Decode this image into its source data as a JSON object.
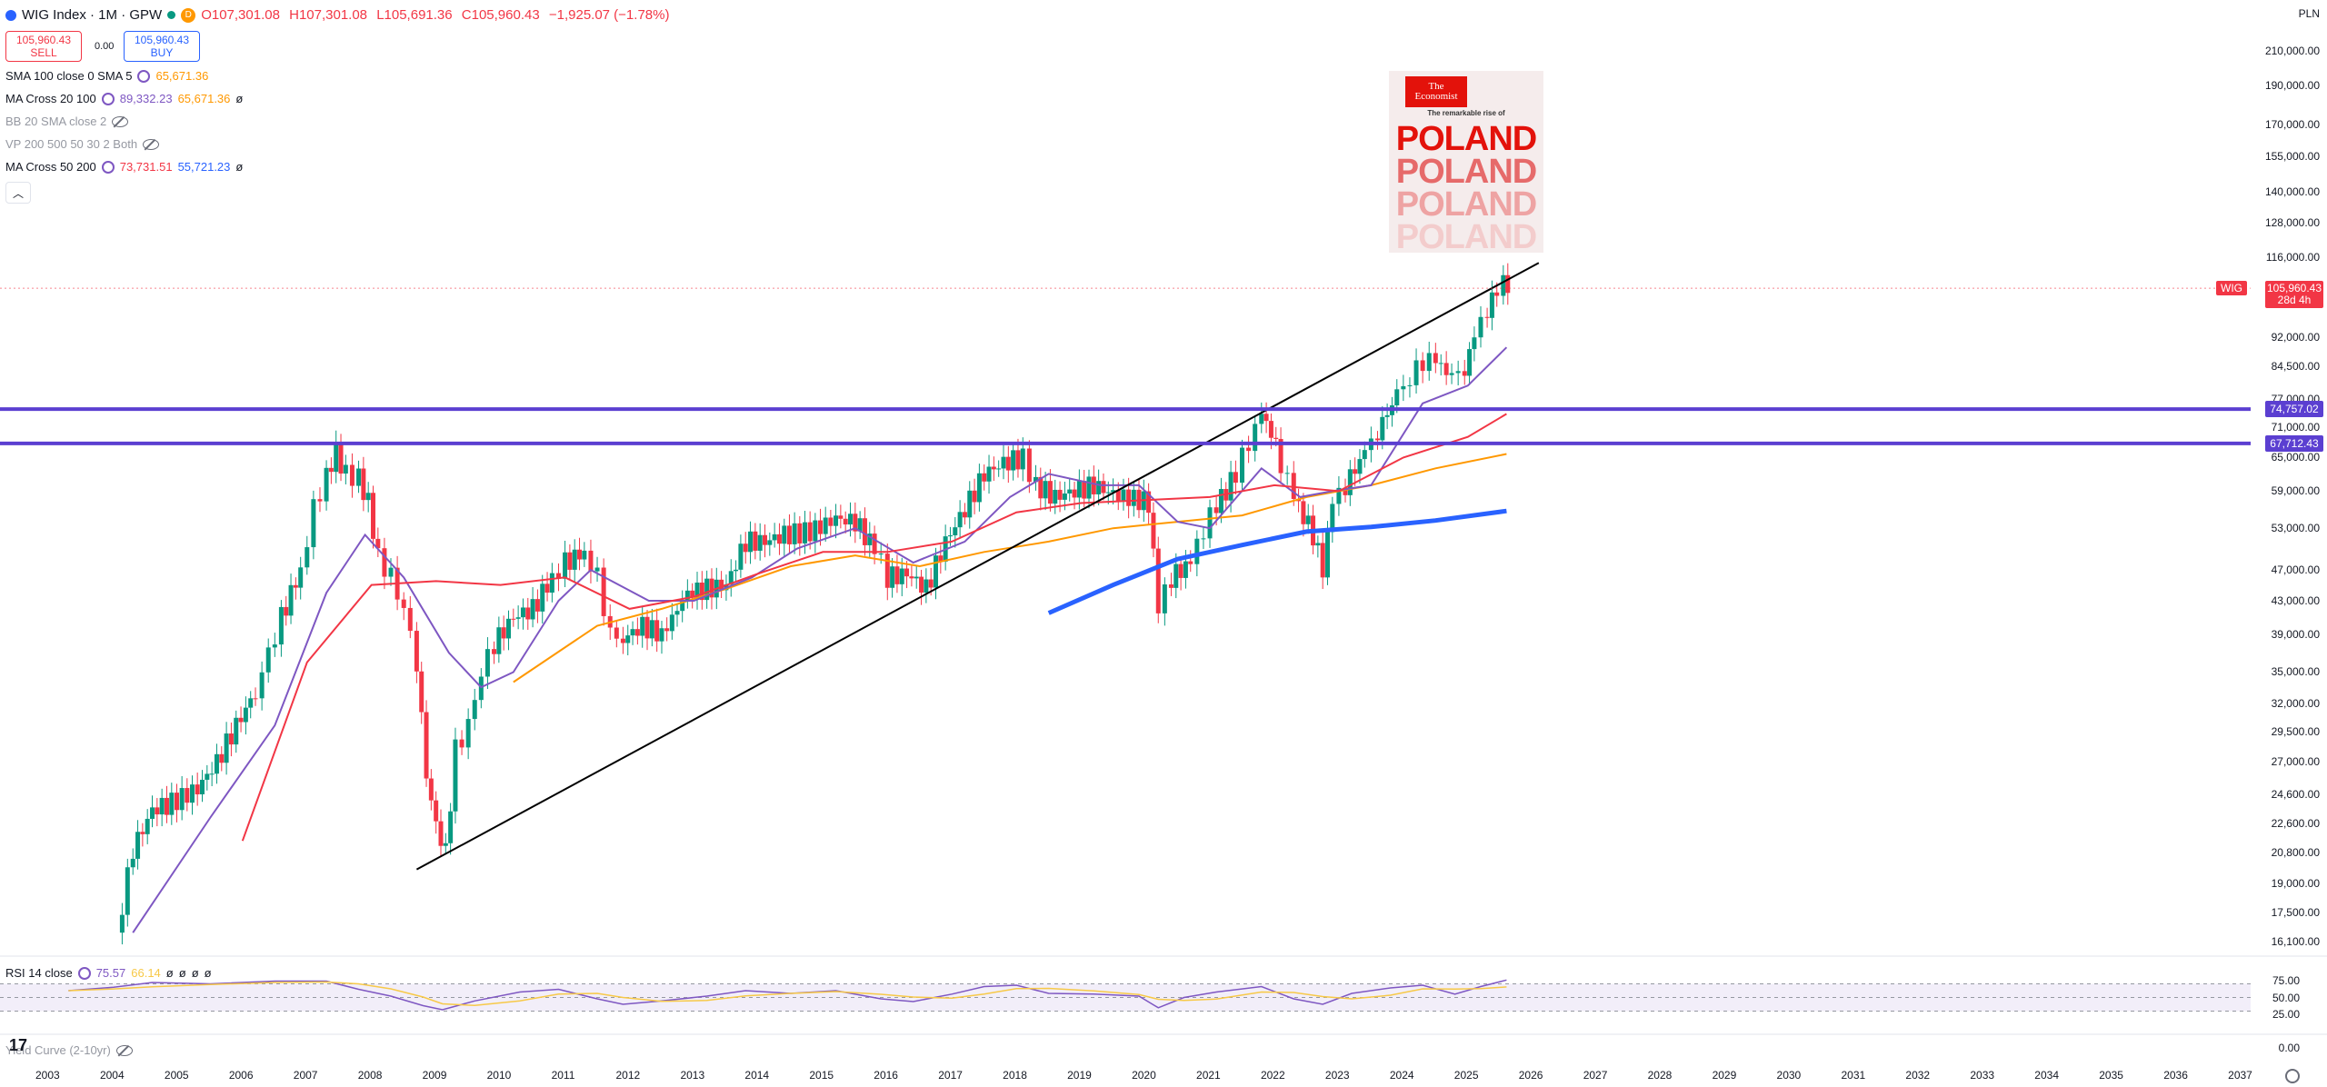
{
  "header": {
    "symbol": "WIG Index · 1M · GPW",
    "market_badge": "D",
    "ohlc": {
      "open": "O107,301.08",
      "high": "H107,301.08",
      "low": "L105,691.36",
      "close": "C105,960.43",
      "change": "−1,925.07 (−1.78%)"
    }
  },
  "trade": {
    "sell_price": "105,960.43",
    "sell_label": "SELL",
    "spread": "0.00",
    "buy_price": "105,960.43",
    "buy_label": "BUY"
  },
  "indicators": [
    {
      "name": "SMA 100 close 0 SMA 5",
      "values": [
        "65,671.36"
      ],
      "colors": [
        "#ff9800"
      ]
    },
    {
      "name": "MA Cross 20 100",
      "values": [
        "89,332.23",
        "65,671.36",
        "ø"
      ],
      "colors": [
        "#7e57c2",
        "#ff9800",
        "#131722"
      ]
    },
    {
      "name": "BB 20 SMA close 2",
      "values": [],
      "hidden": true
    },
    {
      "name": "VP 200 500 50 30 2 Both",
      "values": [],
      "hidden": true
    },
    {
      "name": "MA Cross 50 200",
      "values": [
        "73,731.51",
        "55,721.23",
        "ø"
      ],
      "colors": [
        "#f23645",
        "#2962ff",
        "#131722"
      ]
    }
  ],
  "rsi": {
    "name": "RSI 14 close",
    "values": [
      "75.57",
      "66.14",
      "ø",
      "ø",
      "ø",
      "ø"
    ],
    "axis": [
      "75.00",
      "50.00",
      "25.00",
      "0.00"
    ]
  },
  "yield_curve": {
    "name": "Yield Curve (2-10yr)"
  },
  "currency": "PLN",
  "price_axis": [
    "210,000.00",
    "190,000.00",
    "170,000.00",
    "155,000.00",
    "140,000.00",
    "128,000.00",
    "116,000.00",
    "92,000.00",
    "84,500.00",
    "77,000.00",
    "71,000.00",
    "65,000.00",
    "59,000.00",
    "53,000.00",
    "47,000.00",
    "43,000.00",
    "39,000.00",
    "35,000.00",
    "32,000.00",
    "29,500.00",
    "27,000.00",
    "24,600.00",
    "22,600.00",
    "20,800.00",
    "19,000.00",
    "17,500.00",
    "16,100.00"
  ],
  "time_axis": [
    "2003",
    "2004",
    "2005",
    "2006",
    "2007",
    "2008",
    "2009",
    "2010",
    "2011",
    "2012",
    "2013",
    "2014",
    "2015",
    "2016",
    "2017",
    "2018",
    "2019",
    "2020",
    "2021",
    "2022",
    "2023",
    "2024",
    "2025",
    "2026",
    "2027",
    "2028",
    "2029",
    "2030",
    "2031",
    "2032",
    "2033",
    "2034",
    "2035",
    "2036",
    "2037"
  ],
  "price_tags": [
    {
      "label": "WIG",
      "value": "105,960.43",
      "sub": "28d 4h",
      "color": "#f23645"
    },
    {
      "value": "74,757.02",
      "color": "#5b3fd1"
    },
    {
      "value": "67,712.43",
      "color": "#5b3fd1"
    }
  ],
  "cover": {
    "logo_top": "The",
    "logo_bottom": "Economist",
    "headline": "The remarkable rise of",
    "word": "POLAND"
  },
  "chart_data": {
    "type": "candlestick",
    "title": "WIG Index · 1M · GPW",
    "interval": "1M",
    "y_scale": "log",
    "ylim": [
      15500,
      225000
    ],
    "xlim": [
      2003.0,
      2037.9
    ],
    "last_close": 105960.43,
    "monthly_close": [
      [
        2004.05,
        16500
      ],
      [
        2004.3,
        21000
      ],
      [
        2004.6,
        23500
      ],
      [
        2004.9,
        24000
      ],
      [
        2005.3,
        25000
      ],
      [
        2005.6,
        27000
      ],
      [
        2005.9,
        30000
      ],
      [
        2006.2,
        33000
      ],
      [
        2006.4,
        37000
      ],
      [
        2006.6,
        41000
      ],
      [
        2006.9,
        47000
      ],
      [
        2007.1,
        56000
      ],
      [
        2007.3,
        62000
      ],
      [
        2007.45,
        66000
      ],
      [
        2007.6,
        62000
      ],
      [
        2007.8,
        61500
      ],
      [
        2007.95,
        57000
      ],
      [
        2008.1,
        49000
      ],
      [
        2008.3,
        46000
      ],
      [
        2008.5,
        42000
      ],
      [
        2008.7,
        36000
      ],
      [
        2008.85,
        26000
      ],
      [
        2009.0,
        22500
      ],
      [
        2009.15,
        20800
      ],
      [
        2009.3,
        28000
      ],
      [
        2009.5,
        30000
      ],
      [
        2009.7,
        35000
      ],
      [
        2009.9,
        38000
      ],
      [
        2010.2,
        41000
      ],
      [
        2010.5,
        42000
      ],
      [
        2010.8,
        46000
      ],
      [
        2011.0,
        48000
      ],
      [
        2011.3,
        49500
      ],
      [
        2011.5,
        46000
      ],
      [
        2011.7,
        39000
      ],
      [
        2011.9,
        38500
      ],
      [
        2012.2,
        40000
      ],
      [
        2012.5,
        39000
      ],
      [
        2012.9,
        44000
      ],
      [
        2013.2,
        44500
      ],
      [
        2013.5,
        45000
      ],
      [
        2013.8,
        51000
      ],
      [
        2014.1,
        51000
      ],
      [
        2014.4,
        52000
      ],
      [
        2014.8,
        52500
      ],
      [
        2015.2,
        54500
      ],
      [
        2015.5,
        54000
      ],
      [
        2015.8,
        50000
      ],
      [
        2016.0,
        46000
      ],
      [
        2016.3,
        46500
      ],
      [
        2016.6,
        44500
      ],
      [
        2016.9,
        51000
      ],
      [
        2017.2,
        56000
      ],
      [
        2017.5,
        62000
      ],
      [
        2017.8,
        64000
      ],
      [
        2018.1,
        65000
      ],
      [
        2018.3,
        60000
      ],
      [
        2018.6,
        58000
      ],
      [
        2018.9,
        59000
      ],
      [
        2019.2,
        60000
      ],
      [
        2019.5,
        58500
      ],
      [
        2019.9,
        57500
      ],
      [
        2020.05,
        57000
      ],
      [
        2020.2,
        42000
      ],
      [
        2020.4,
        46000
      ],
      [
        2020.7,
        48000
      ],
      [
        2020.9,
        53000
      ],
      [
        2021.1,
        56500
      ],
      [
        2021.4,
        62000
      ],
      [
        2021.6,
        68000
      ],
      [
        2021.8,
        73500
      ],
      [
        2021.95,
        70000
      ],
      [
        2022.1,
        64000
      ],
      [
        2022.3,
        58000
      ],
      [
        2022.6,
        52000
      ],
      [
        2022.75,
        47000
      ],
      [
        2022.9,
        57000
      ],
      [
        2023.1,
        60000
      ],
      [
        2023.4,
        66000
      ],
      [
        2023.6,
        70000
      ],
      [
        2023.9,
        78000
      ],
      [
        2024.1,
        81500
      ],
      [
        2024.3,
        86000
      ],
      [
        2024.5,
        86000
      ],
      [
        2024.75,
        82000
      ],
      [
        2024.95,
        84000
      ],
      [
        2025.1,
        92000
      ],
      [
        2025.3,
        100000
      ],
      [
        2025.45,
        105000
      ],
      [
        2025.55,
        107300
      ],
      [
        2025.62,
        105960
      ]
    ],
    "series": [
      {
        "name": "SMA 100 close 0 SMA 5",
        "color": "#ff9800",
        "points": [
          [
            2010.2,
            34000
          ],
          [
            2011.5,
            40000
          ],
          [
            2012.5,
            42000
          ],
          [
            2013.5,
            44500
          ],
          [
            2014.5,
            47500
          ],
          [
            2015.5,
            49000
          ],
          [
            2016.5,
            47500
          ],
          [
            2017.5,
            49500
          ],
          [
            2018.5,
            51000
          ],
          [
            2019.5,
            53000
          ],
          [
            2020.5,
            54000
          ],
          [
            2021.5,
            55000
          ],
          [
            2022.5,
            58000
          ],
          [
            2023.5,
            60000
          ],
          [
            2024.5,
            63000
          ],
          [
            2025.6,
            65671
          ]
        ]
      },
      {
        "name": "MA Cross 20 100 (fast)",
        "color": "#7e57c2",
        "points": [
          [
            2004.3,
            16500
          ],
          [
            2005.5,
            23000
          ],
          [
            2006.5,
            30000
          ],
          [
            2007.3,
            44000
          ],
          [
            2007.9,
            52000
          ],
          [
            2008.5,
            46000
          ],
          [
            2009.2,
            37000
          ],
          [
            2009.7,
            33500
          ],
          [
            2010.2,
            35000
          ],
          [
            2010.9,
            43000
          ],
          [
            2011.4,
            47000
          ],
          [
            2012.3,
            43000
          ],
          [
            2013.0,
            43000
          ],
          [
            2013.9,
            46000
          ],
          [
            2014.6,
            50000
          ],
          [
            2015.5,
            53000
          ],
          [
            2016.4,
            48000
          ],
          [
            2017.2,
            51000
          ],
          [
            2017.9,
            58000
          ],
          [
            2018.5,
            62000
          ],
          [
            2019.3,
            60000
          ],
          [
            2019.9,
            60000
          ],
          [
            2020.5,
            54000
          ],
          [
            2021.0,
            53000
          ],
          [
            2021.8,
            63000
          ],
          [
            2022.4,
            58000
          ],
          [
            2022.9,
            59000
          ],
          [
            2023.5,
            60000
          ],
          [
            2024.3,
            76000
          ],
          [
            2025.0,
            80000
          ],
          [
            2025.6,
            89332
          ]
        ]
      },
      {
        "name": "MA Cross 50 200 (fast)",
        "color": "#f23645",
        "points": [
          [
            2006.0,
            21500
          ],
          [
            2007.0,
            36000
          ],
          [
            2008.0,
            45000
          ],
          [
            2009.0,
            45500
          ],
          [
            2010.0,
            45000
          ],
          [
            2011.0,
            46000
          ],
          [
            2012.0,
            42000
          ],
          [
            2013.0,
            43500
          ],
          [
            2014.0,
            46500
          ],
          [
            2015.0,
            49500
          ],
          [
            2016.0,
            49500
          ],
          [
            2017.0,
            51000
          ],
          [
            2018.0,
            55500
          ],
          [
            2019.0,
            57000
          ],
          [
            2020.0,
            57500
          ],
          [
            2021.0,
            58000
          ],
          [
            2022.0,
            60000
          ],
          [
            2023.0,
            59000
          ],
          [
            2024.0,
            65000
          ],
          [
            2025.0,
            69000
          ],
          [
            2025.6,
            73731
          ]
        ]
      },
      {
        "name": "MA Cross 50 200 (slow)",
        "color": "#2962ff",
        "points": [
          [
            2018.5,
            41500
          ],
          [
            2019.5,
            45000
          ],
          [
            2020.5,
            48500
          ],
          [
            2021.5,
            50500
          ],
          [
            2022.5,
            52500
          ],
          [
            2023.5,
            53200
          ],
          [
            2024.5,
            54200
          ],
          [
            2025.6,
            55721
          ]
        ]
      }
    ],
    "annotations": [
      {
        "type": "trendline",
        "points": [
          [
            2008.7,
            19800
          ],
          [
            2026.1,
            114000
          ]
        ]
      },
      {
        "type": "horizontal_line",
        "value": 74757.02
      },
      {
        "type": "horizontal_line",
        "value": 67712.43
      }
    ],
    "rsi_14": {
      "ylim": [
        0,
        100
      ],
      "bands": [
        30,
        70
      ],
      "points": [
        [
          2003.3,
          60
        ],
        [
          2004.0,
          65
        ],
        [
          2004.6,
          72
        ],
        [
          2005.5,
          70
        ],
        [
          2006.5,
          74
        ],
        [
          2007.3,
          74
        ],
        [
          2007.8,
          62
        ],
        [
          2008.3,
          52
        ],
        [
          2008.8,
          38
        ],
        [
          2009.1,
          32
        ],
        [
          2009.6,
          45
        ],
        [
          2010.3,
          58
        ],
        [
          2010.9,
          62
        ],
        [
          2011.5,
          48
        ],
        [
          2011.9,
          40
        ],
        [
          2012.5,
          45
        ],
        [
          2013.2,
          52
        ],
        [
          2013.8,
          60
        ],
        [
          2014.5,
          56
        ],
        [
          2015.2,
          60
        ],
        [
          2015.9,
          48
        ],
        [
          2016.4,
          44
        ],
        [
          2017.0,
          55
        ],
        [
          2017.5,
          66
        ],
        [
          2018.0,
          68
        ],
        [
          2018.5,
          56
        ],
        [
          2019.2,
          55
        ],
        [
          2019.9,
          52
        ],
        [
          2020.2,
          35
        ],
        [
          2020.6,
          50
        ],
        [
          2021.1,
          58
        ],
        [
          2021.8,
          66
        ],
        [
          2022.3,
          48
        ],
        [
          2022.75,
          40
        ],
        [
          2023.2,
          56
        ],
        [
          2023.8,
          64
        ],
        [
          2024.3,
          68
        ],
        [
          2024.8,
          55
        ],
        [
          2025.2,
          66
        ],
        [
          2025.6,
          75.57
        ]
      ]
    }
  }
}
